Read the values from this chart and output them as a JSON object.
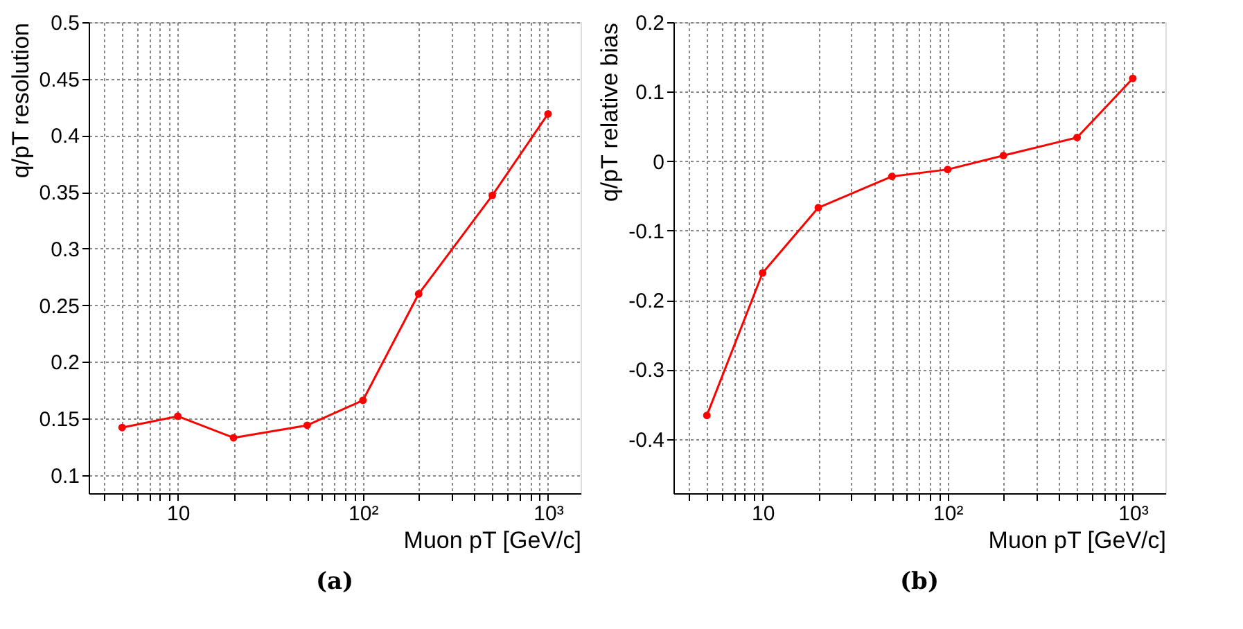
{
  "chart_data": [
    {
      "type": "line",
      "xlabel": "Muon pT [GeV/c]",
      "ylabel": "q/pT resolution",
      "annotations": [
        "(a)"
      ],
      "log": "x",
      "grid": true,
      "marker": "circle",
      "line_style": "solid",
      "x": [
        5,
        10,
        20,
        50,
        100,
        200,
        500,
        1000
      ],
      "series": [
        {
          "color": "#ff0000",
          "values": [
            0.142,
            0.152,
            0.133,
            0.144,
            0.166,
            0.26,
            0.347,
            0.419
          ]
        }
      ],
      "xlim": [
        3.3,
        1500
      ],
      "ylim": [
        0.084,
        0.5
      ],
      "xticks": [
        {
          "value": 4,
          "label": null
        },
        {
          "value": 5,
          "label": null
        },
        {
          "value": 6,
          "label": null
        },
        {
          "value": 7,
          "label": null
        },
        {
          "value": 8,
          "label": null
        },
        {
          "value": 9,
          "label": null
        },
        10,
        {
          "value": 20,
          "label": null
        },
        {
          "value": 30,
          "label": null
        },
        {
          "value": 40,
          "label": null
        },
        {
          "value": 50,
          "label": null
        },
        {
          "value": 60,
          "label": null
        },
        {
          "value": 70,
          "label": null
        },
        {
          "value": 80,
          "label": null
        },
        {
          "value": 90,
          "label": null
        },
        {
          "value": 100,
          "label": "10²"
        },
        {
          "value": 200,
          "label": null
        },
        {
          "value": 300,
          "label": null
        },
        {
          "value": 400,
          "label": null
        },
        {
          "value": 500,
          "label": null
        },
        {
          "value": 600,
          "label": null
        },
        {
          "value": 700,
          "label": null
        },
        {
          "value": 800,
          "label": null
        },
        {
          "value": 900,
          "label": null
        },
        {
          "value": 1000,
          "label": "10³"
        }
      ],
      "yticks": [
        0.1,
        0.15,
        0.2,
        0.25,
        0.3,
        0.35,
        0.4,
        0.45,
        0.5
      ]
    },
    {
      "type": "line",
      "xlabel": "Muon pT [GeV/c]",
      "ylabel": "q/pT relative bias",
      "annotations": [
        "(b)"
      ],
      "log": "x",
      "grid": true,
      "marker": "circle",
      "line_style": "solid",
      "x": [
        5,
        10,
        20,
        50,
        100,
        200,
        500,
        1000
      ],
      "series": [
        {
          "color": "#ff0000",
          "values": [
            -0.366,
            -0.161,
            -0.067,
            -0.022,
            -0.012,
            0.008,
            0.034,
            0.119
          ]
        }
      ],
      "xlim": [
        3.3,
        1500
      ],
      "ylim": [
        -0.478,
        0.2
      ],
      "xticks": [
        {
          "value": 4,
          "label": null
        },
        {
          "value": 5,
          "label": null
        },
        {
          "value": 6,
          "label": null
        },
        {
          "value": 7,
          "label": null
        },
        {
          "value": 8,
          "label": null
        },
        {
          "value": 9,
          "label": null
        },
        10,
        {
          "value": 20,
          "label": null
        },
        {
          "value": 30,
          "label": null
        },
        {
          "value": 40,
          "label": null
        },
        {
          "value": 50,
          "label": null
        },
        {
          "value": 60,
          "label": null
        },
        {
          "value": 70,
          "label": null
        },
        {
          "value": 80,
          "label": null
        },
        {
          "value": 90,
          "label": null
        },
        {
          "value": 100,
          "label": "10²"
        },
        {
          "value": 200,
          "label": null
        },
        {
          "value": 300,
          "label": null
        },
        {
          "value": 400,
          "label": null
        },
        {
          "value": 500,
          "label": null
        },
        {
          "value": 600,
          "label": null
        },
        {
          "value": 700,
          "label": null
        },
        {
          "value": 800,
          "label": null
        },
        {
          "value": 900,
          "label": null
        },
        {
          "value": 1000,
          "label": "10³"
        }
      ],
      "yticks": [
        -0.4,
        -0.3,
        -0.2,
        -0.1,
        0,
        0.1,
        0.2
      ]
    }
  ]
}
